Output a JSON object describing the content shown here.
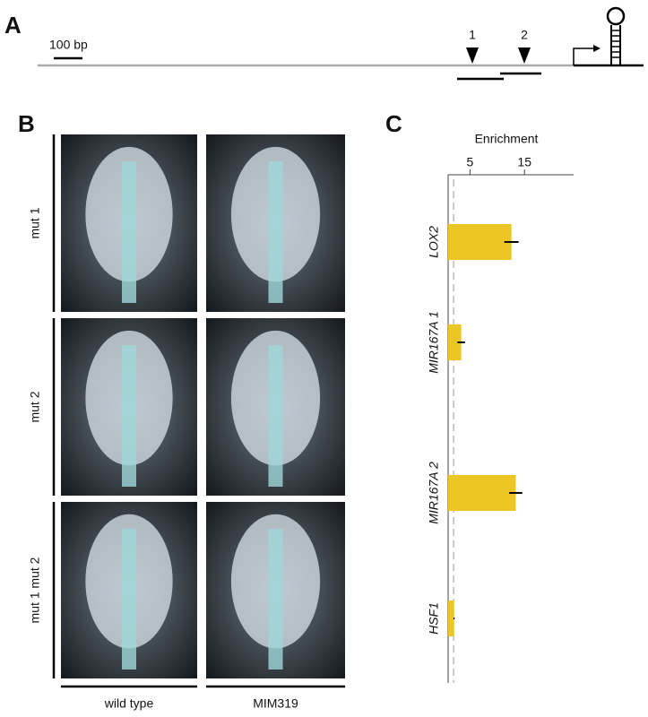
{
  "panels": {
    "a": "A",
    "b": "B",
    "c": "C"
  },
  "schematic": {
    "scale_label": "100 bp",
    "sites": [
      "1",
      "2"
    ]
  },
  "photos": {
    "rows": [
      "mut 1",
      "mut 2",
      "mut 1 mut 2"
    ],
    "columns": [
      "wild type",
      "MIM319"
    ]
  },
  "chart_data": {
    "type": "hbar",
    "x_label": "Enrichment",
    "categories": [
      "LOX2",
      "MIR167A 1",
      "MIR167A 2",
      "HSF1"
    ],
    "values": [
      12.6,
      3.4,
      13.4,
      2.1
    ],
    "errors": [
      1.3,
      0.7,
      1.2,
      0.1
    ],
    "color": "#ecc625",
    "xlim": [
      1,
      24
    ],
    "xticks": [
      5,
      15
    ],
    "reference": 2
  }
}
